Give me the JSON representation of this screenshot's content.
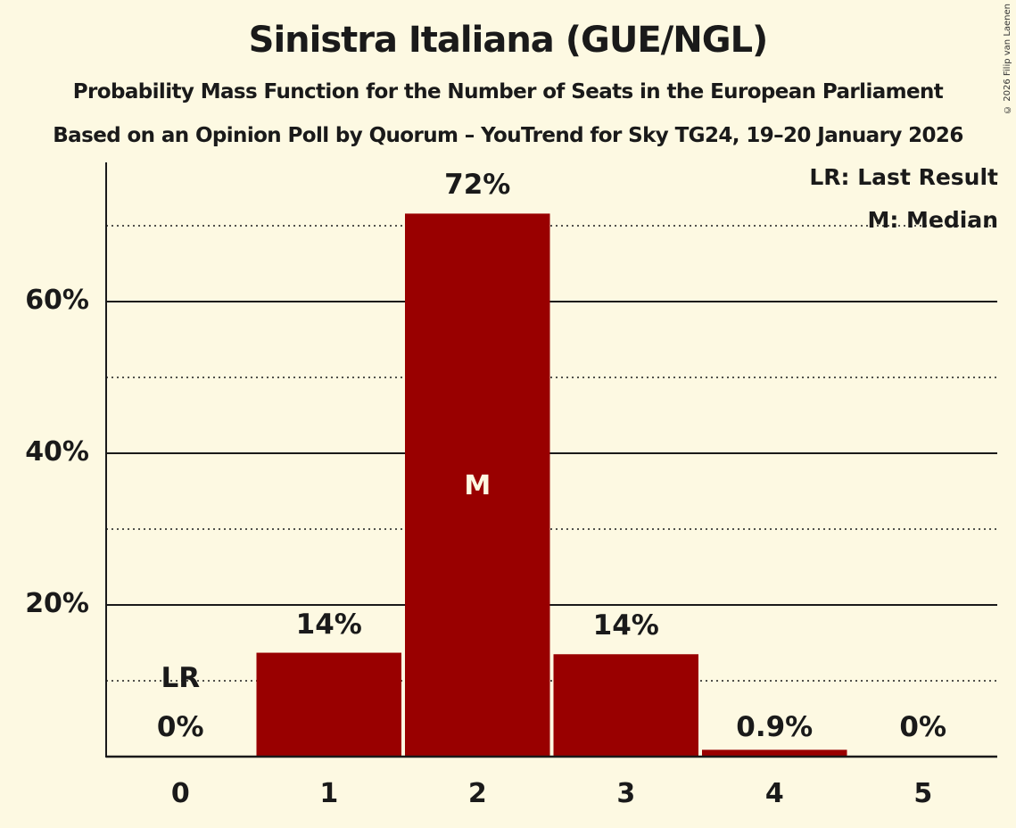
{
  "header": {
    "title": "Sinistra Italiana (GUE/NGL)",
    "subtitle": "Probability Mass Function for the Number of Seats in the European Parliament",
    "source_line": "Based on an Opinion Poll by Quorum – YouTrend for Sky TG24, 19–20 January 2026",
    "copyright": "© 2026 Filip van Laenen"
  },
  "legend": {
    "last_result": "LR: Last Result",
    "median": "M: Median"
  },
  "colors": {
    "background": "#fdf9e2",
    "bar": "#990000",
    "text": "#1a1a1a"
  },
  "markers": {
    "last_result_label": "LR",
    "median_label": "M"
  },
  "chart_data": {
    "type": "bar",
    "title": "Sinistra Italiana (GUE/NGL)",
    "subtitle": "Probability Mass Function for the Number of Seats in the European Parliament",
    "caption": "Based on an Opinion Poll by Quorum – YouTrend for Sky TG24, 19–20 January 2026",
    "xlabel": "",
    "ylabel": "",
    "categories": [
      "0",
      "1",
      "2",
      "3",
      "4",
      "5"
    ],
    "values": [
      0,
      13.7,
      71.6,
      13.5,
      0.9,
      0
    ],
    "value_labels": [
      "0%",
      "14%",
      "72%",
      "14%",
      "0.9%",
      "0%"
    ],
    "ylim": [
      0,
      78
    ],
    "yticks": [
      20,
      40,
      60
    ],
    "ytick_labels": [
      "20%",
      "40%",
      "60%"
    ],
    "minor_gridlines": [
      10,
      30,
      50,
      70
    ],
    "grid": true,
    "last_result": 0,
    "median": 2,
    "legend_position": "top-right",
    "legend": [
      "LR: Last Result",
      "M: Median"
    ]
  }
}
